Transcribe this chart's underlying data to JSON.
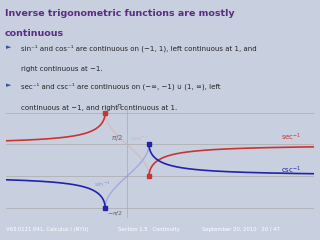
{
  "header_bg": "#7b7fb5",
  "body_bg": "#c8d0e0",
  "plot_bg": "#c8d0e0",
  "footer_bg": "#7b9fcc",
  "title_line1": "Inverse trigonometric functions are mostly",
  "title_line2": "continuous",
  "title_color": "#5a2d82",
  "bullet_color": "#335599",
  "text_color": "#222222",
  "bullet1a": "sin⁻¹ and cos⁻¹ are continuous on (−1, 1), left continuous at 1, and",
  "bullet1b": "right continuous at −1.",
  "bullet2a": "sec⁻¹ and csc⁻¹ are continuous on (−∞, −1) ∪ (1, ∞), left",
  "bullet2b": "continuous at −1, and right continuous at 1.",
  "footer_left": "V63.0121.041, Calculus I (NYU)",
  "footer_mid": "Section 1.5   Continuity",
  "footer_right": "September 20, 2010   20 / 47",
  "sin_color": "#8888dd",
  "cos_color": "#ddaaaa",
  "sec_color": "#cc3333",
  "csc_color": "#2222aa",
  "axis_color": "#aaaaaa",
  "xmin": -5.5,
  "xmax": 8.5,
  "ymin": -2.1,
  "ymax": 3.5
}
